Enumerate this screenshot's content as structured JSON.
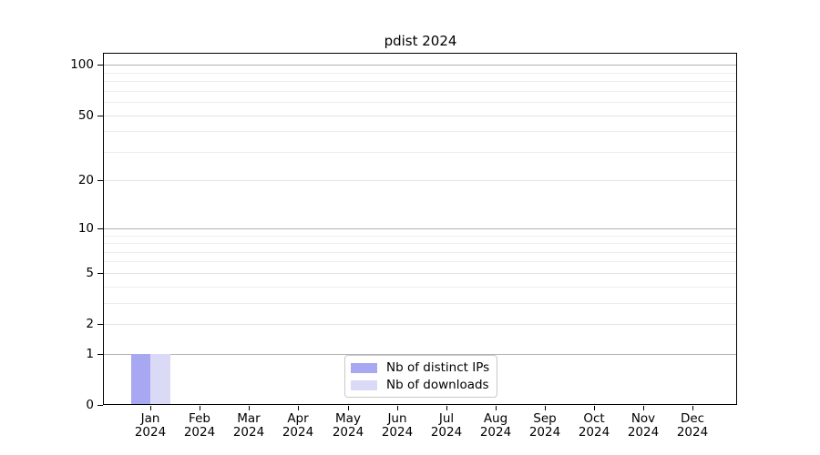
{
  "title": "pdist 2024",
  "chart_data": {
    "type": "bar",
    "title": "pdist 2024",
    "months": [
      "Jan",
      "Feb",
      "Mar",
      "Apr",
      "May",
      "Jun",
      "Jul",
      "Aug",
      "Sep",
      "Oct",
      "Nov",
      "Dec"
    ],
    "year_label": "2024",
    "series": [
      {
        "name": "Nb of distinct IPs",
        "color": "#a7a7f2",
        "values": [
          1,
          0,
          0,
          0,
          0,
          0,
          0,
          0,
          0,
          0,
          0,
          0
        ]
      },
      {
        "name": "Nb of downloads",
        "color": "#dadaf7",
        "values": [
          1,
          0,
          0,
          0,
          0,
          0,
          0,
          0,
          0,
          0,
          0,
          0
        ]
      }
    ],
    "yscale": "log10(value+1)",
    "ytick_labels": [
      100,
      50,
      20,
      10,
      5,
      2,
      1,
      0
    ],
    "ytick_minor": [
      3,
      4,
      6,
      7,
      8,
      9,
      30,
      40,
      60,
      70,
      80,
      90
    ],
    "ylim": [
      0,
      118
    ],
    "grid": "horizontal",
    "legend_position": "lower center",
    "colors": {
      "frame": "#000000",
      "grid_decade": "#b2b2b2",
      "grid_major": "#e3e3e3",
      "grid_minor": "#ededed",
      "legend_border": "#c9c9c9",
      "background": "#ffffff"
    }
  }
}
